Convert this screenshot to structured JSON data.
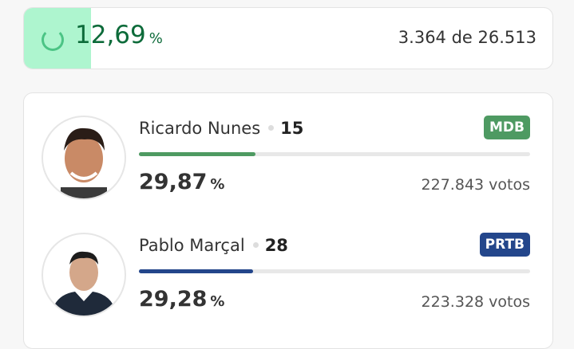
{
  "progress": {
    "percent_label": "12,69",
    "percent_sign": "%",
    "fraction": 0.1269,
    "count": "3.364 de 26.513",
    "fill_color": "#aef5cf",
    "icon": "loading-spinner-icon"
  },
  "candidates": [
    {
      "name": "Ricardo Nunes",
      "number": "15",
      "party": "MDB",
      "party_color": "#4e9a62",
      "bar_color": "#4e9a62",
      "percent": "29,87",
      "percent_sign": "%",
      "share": 29.87,
      "votes": "227.843 votos"
    },
    {
      "name": "Pablo Marçal",
      "number": "28",
      "party": "PRTB",
      "party_color": "#23468b",
      "bar_color": "#23468b",
      "percent": "29,28",
      "percent_sign": "%",
      "share": 29.28,
      "votes": "223.328 votos"
    }
  ]
}
